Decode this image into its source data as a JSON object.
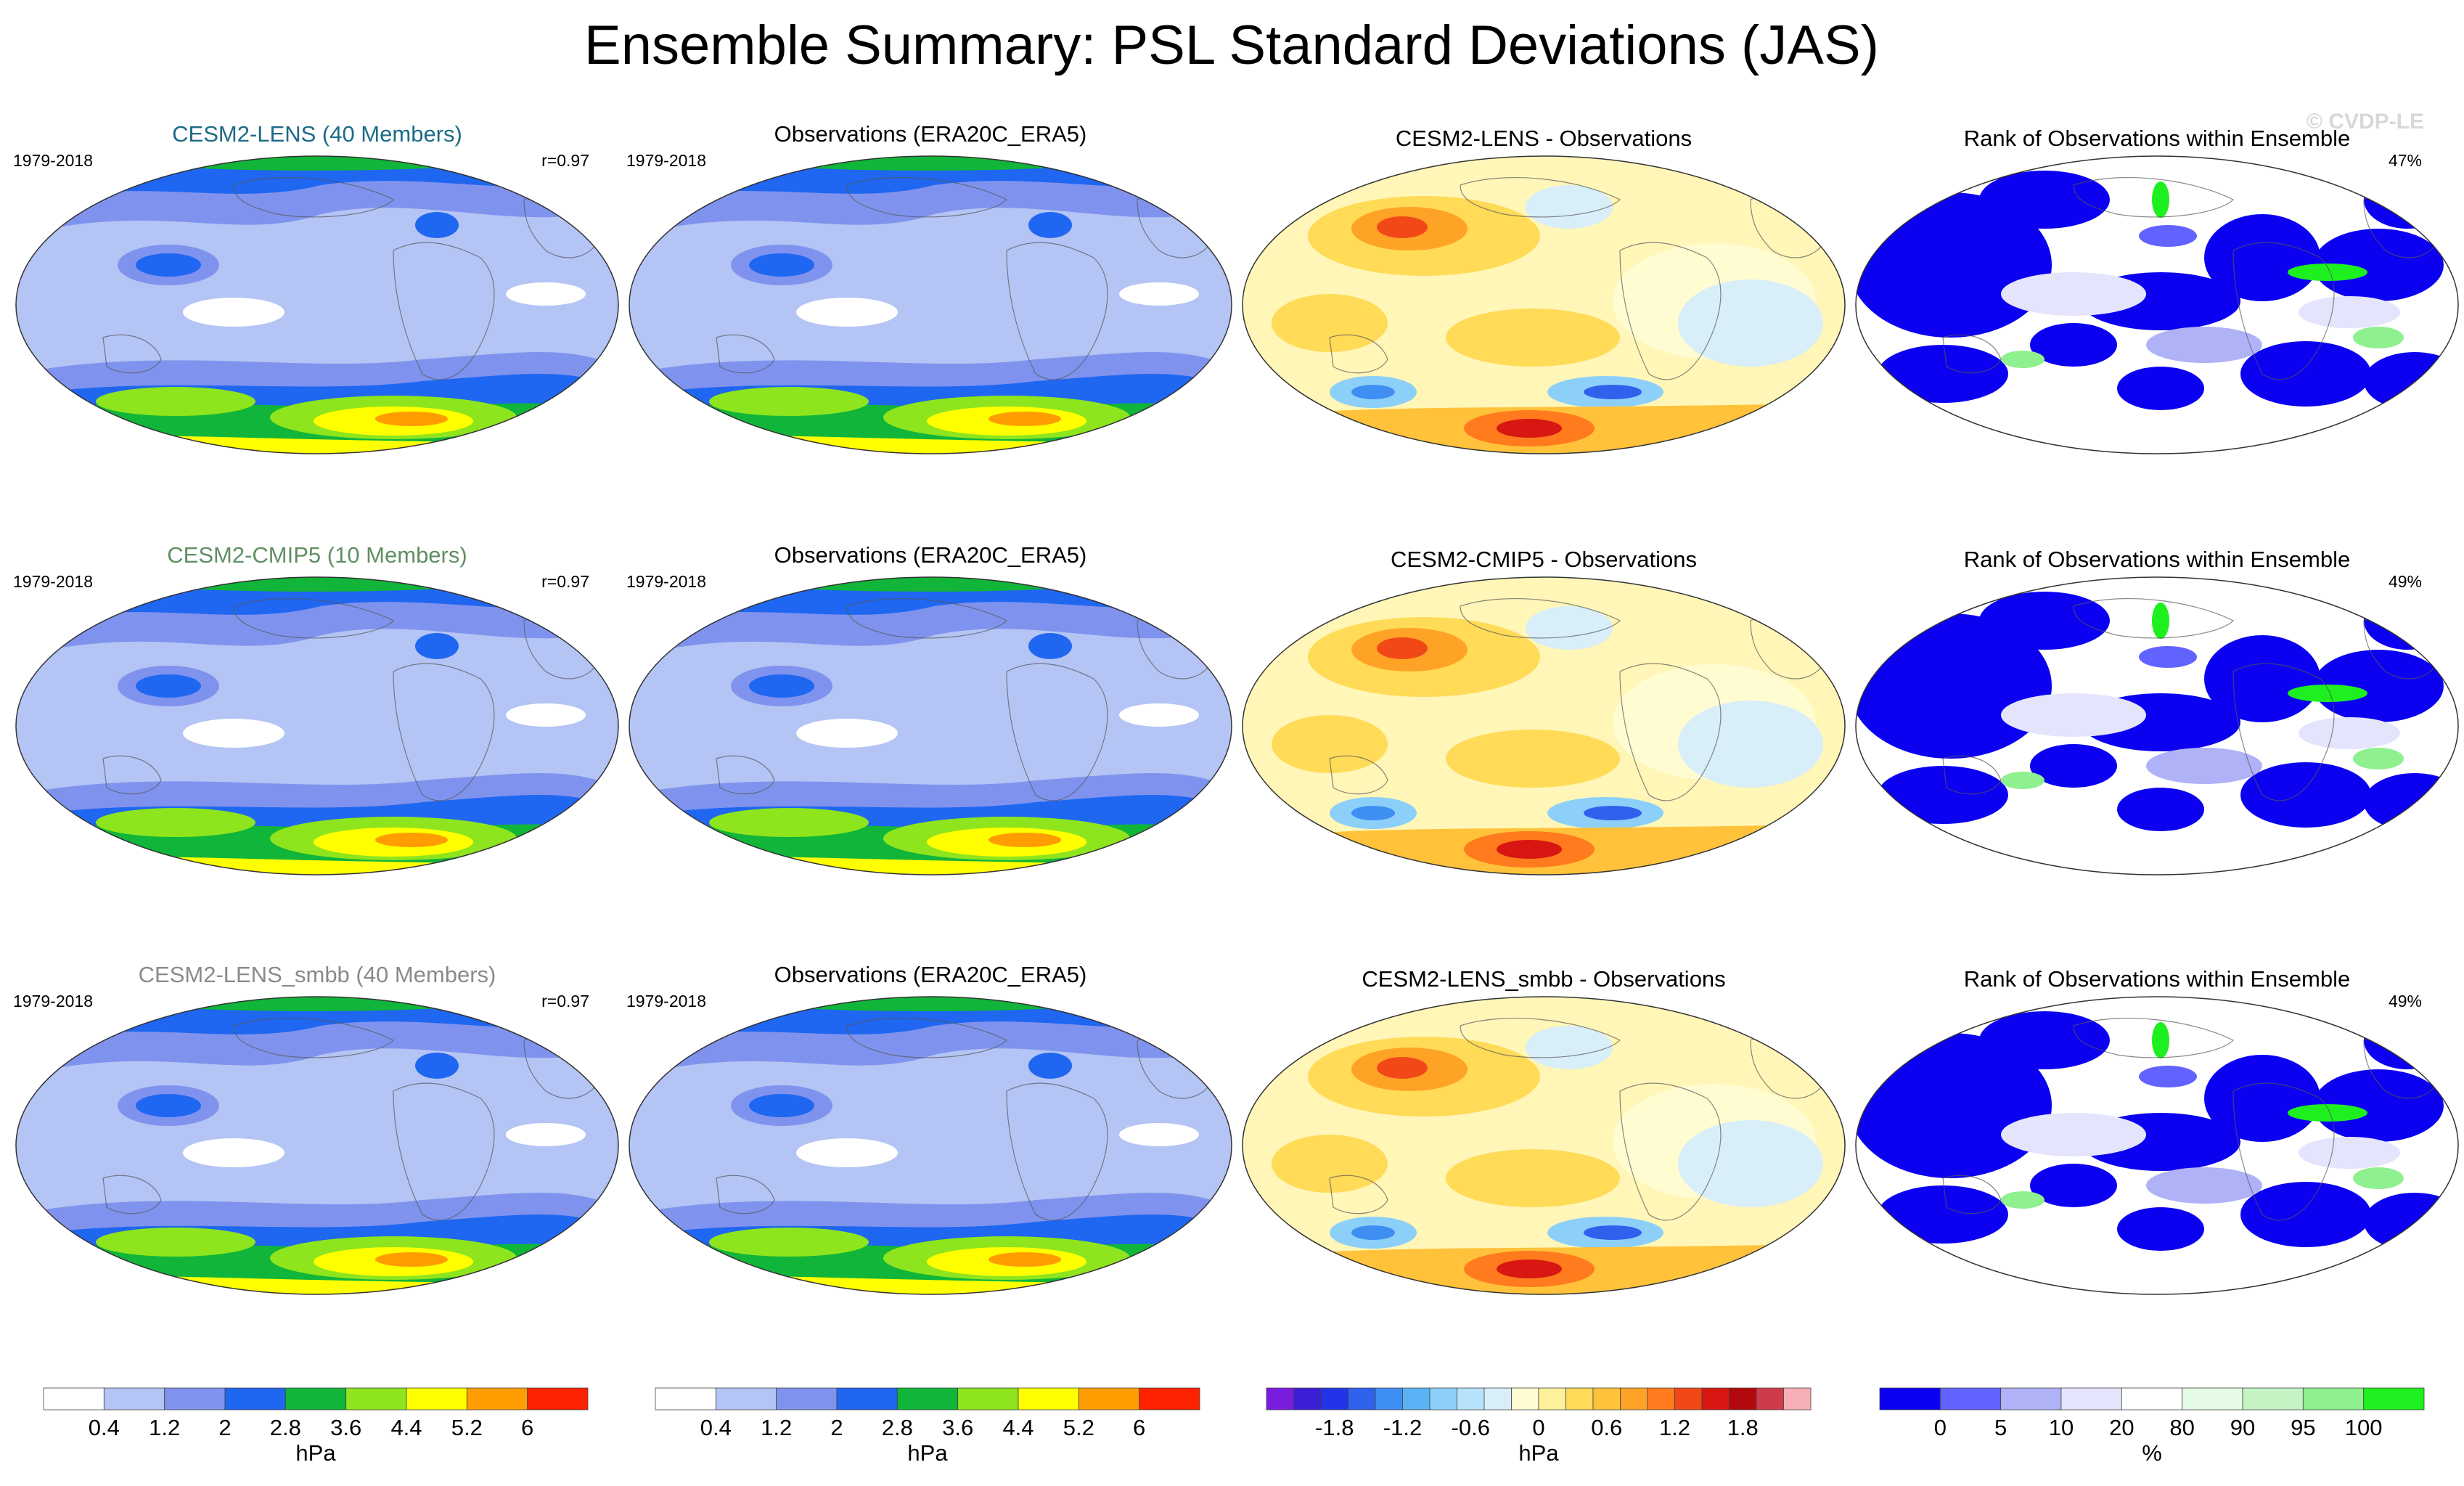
{
  "title": "Ensemble Summary: PSL Standard Deviations (JAS)",
  "watermark": "© CVDP-LE",
  "period": "1979-2018",
  "rows": [
    {
      "model_title": "CESM2-LENS (40 Members)",
      "model_title_color": "#1c6a86",
      "r_label": "r=0.97",
      "obs_title": "Observations (ERA20C_ERA5)",
      "diff_title": "CESM2-LENS - Observations",
      "rank_title": "Rank of Observations within Ensemble",
      "rank_pct": "47%"
    },
    {
      "model_title": "CESM2-CMIP5 (10 Members)",
      "model_title_color": "#5f8f63",
      "r_label": "r=0.97",
      "obs_title": "Observations (ERA20C_ERA5)",
      "diff_title": "CESM2-CMIP5 - Observations",
      "rank_title": "Rank of Observations within Ensemble",
      "rank_pct": "49%"
    },
    {
      "model_title": "CESM2-LENS_smbb (40 Members)",
      "model_title_color": "#8a8a8a",
      "r_label": "r=0.97",
      "obs_title": "Observations (ERA20C_ERA5)",
      "diff_title": "CESM2-LENS_smbb - Observations",
      "rank_title": "Rank of Observations within Ensemble",
      "rank_pct": "49%"
    }
  ],
  "chart_data": [
    {
      "type": "heatmap",
      "name": "psl_stddev_colorbar",
      "units": "hPa",
      "tick_labels": [
        "0.4",
        "1.2",
        "2",
        "2.8",
        "3.6",
        "4.4",
        "5.2",
        "6"
      ],
      "colors": [
        "#ffffff",
        "#b4c4f4",
        "#7f93ee",
        "#1f66f0",
        "#11b539",
        "#8ee51d",
        "#ffff00",
        "#ff9c00",
        "#ff2200"
      ]
    },
    {
      "type": "heatmap",
      "name": "difference_colorbar",
      "units": "hPa",
      "tick_labels": [
        "-1.8",
        "-1.2",
        "-0.6",
        "0",
        "0.6",
        "1.2",
        "1.8"
      ],
      "colors": [
        "#7a1ce0",
        "#3b1fd6",
        "#2233e8",
        "#2e61ec",
        "#3f8ff2",
        "#5ab2f5",
        "#8cd0fa",
        "#b7e2fb",
        "#d8eef8",
        "#fffcd2",
        "#fff19a",
        "#ffdb58",
        "#ffc23a",
        "#ffa326",
        "#ff7b1d",
        "#f24818",
        "#d81612",
        "#b3080c",
        "#cf3b4a",
        "#f6b0b6"
      ]
    },
    {
      "type": "heatmap",
      "name": "rank_colorbar",
      "units": "%",
      "tick_labels": [
        "0",
        "5",
        "10",
        "20",
        "80",
        "90",
        "95",
        "100"
      ],
      "colors": [
        "#0b00f0",
        "#6262ff",
        "#b0b2f8",
        "#e4e4fc",
        "#ffffff",
        "#e6fbe6",
        "#c4f4c4",
        "#8ff08f",
        "#1eef1e"
      ]
    }
  ],
  "colorbars": {
    "std_units": "hPa",
    "diff_units": "hPa",
    "rank_units": "%"
  },
  "palettes": {
    "std": [
      "#ffffff",
      "#b4c4f4",
      "#7f93ee",
      "#1f66f0",
      "#11b539",
      "#8ee51d",
      "#ffff00",
      "#ff9c00",
      "#ff2200"
    ],
    "diff_bg": "#fff6b8",
    "rank_bg": "#ffffff"
  }
}
